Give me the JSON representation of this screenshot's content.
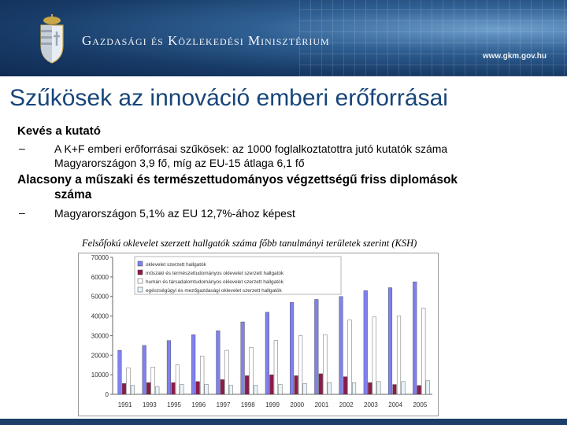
{
  "header": {
    "ministry": "Gazdasági és Közlekedési Minisztérium",
    "url": "www.gkm.gov.hu"
  },
  "slide": {
    "title": "Szűkösek az innováció emberi erőforrásai",
    "bullet1": "Kevés a kutató",
    "bullet1_dash": "–",
    "bullet1_sub_line1": "A K+F emberi erőforrásai szűkösek: az 1000 foglalkoztatottra jutó kutatók száma",
    "bullet1_sub_line2": "Magyarországon 3,9 fő, míg az EU-15 átlaga 6,1 fő",
    "bullet2_line1": "Alacsony a műszaki és természettudományos végzettségű friss diplomások",
    "bullet2_line2": "száma",
    "bullet2_dash": "–",
    "bullet2_sub": "Magyarországon 5,1% az EU 12,7%-ához képest",
    "chart_caption": "Felsőfokú oklevelet szerzett hallgatók száma főbb tanulmányi területek szerint (KSH)"
  },
  "chart_data": {
    "type": "bar",
    "categories": [
      "1991",
      "1993",
      "1995",
      "1996",
      "1997",
      "1998",
      "1999",
      "2000",
      "2001",
      "2002",
      "2003",
      "2004",
      "2005"
    ],
    "ylim": [
      0,
      70000
    ],
    "yticks": [
      "0",
      "10000",
      "20000",
      "30000",
      "40000",
      "50000",
      "60000",
      "70000"
    ],
    "legend_position": "top-left",
    "series": [
      {
        "name": "oklevelet szerzett hallgatók",
        "color": "#8080f0",
        "values": [
          22500,
          25000,
          27500,
          30500,
          32500,
          37000,
          42000,
          47000,
          48500,
          50000,
          53000,
          54500,
          57500
        ]
      },
      {
        "name": "műszaki és természettudományos oklevelet szerzett hallgatók",
        "color": "#8c1a4a",
        "values": [
          5500,
          6000,
          6000,
          6500,
          7500,
          9500,
          10000,
          9500,
          10500,
          9000,
          6000,
          5000,
          4500
        ]
      },
      {
        "name": "humán és társadalomtudományos oklevelet szerzett hallgatók",
        "color": "#ffffff",
        "values": [
          13500,
          14000,
          15000,
          19500,
          22500,
          24000,
          27500,
          30000,
          30500,
          38000,
          39500,
          40000,
          44000
        ]
      },
      {
        "name": "egészségügyi és mezőgazdasági oklevelet szerzett hallgatók",
        "color": "#e8f4fa",
        "values": [
          4500,
          4000,
          5000,
          5000,
          4500,
          4500,
          5000,
          5500,
          6000,
          6000,
          6500,
          6500,
          7000
        ]
      }
    ]
  }
}
